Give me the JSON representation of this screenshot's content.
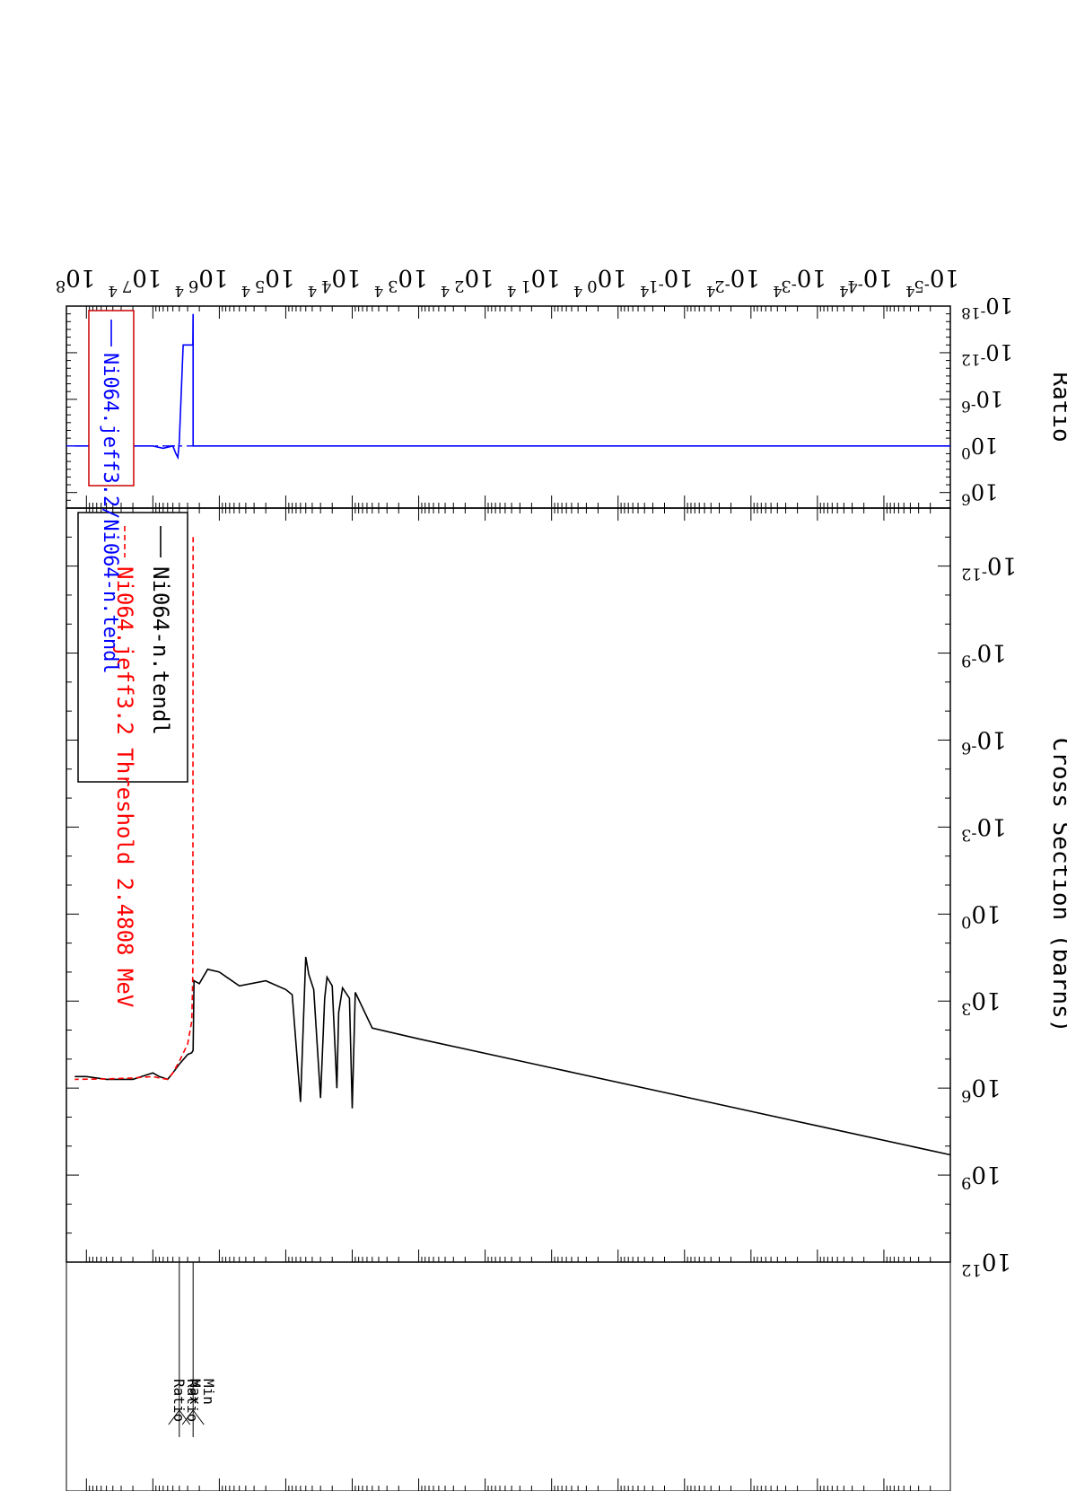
{
  "chart_data": [
    {
      "type": "line",
      "ylabel": "Cross Section (barns)",
      "x_scale": "log",
      "y_scale": "log",
      "xlim": [
        1e-05,
        200000000.0
      ],
      "ylim": [
        1e-14,
        1000000000000.0
      ],
      "x_tick_labels": [
        "10^-5",
        "10^-4",
        "10^-3",
        "10^-2",
        "10^-1",
        "10^0",
        "10^1",
        "10^2",
        "10^3",
        "10^4",
        "10^5",
        "10^6",
        "10^7",
        "10^8"
      ],
      "y_tick_labels": [
        "10^-12",
        "10^-9",
        "10^-6",
        "10^-3",
        "10^0",
        "10^3",
        "10^6",
        "10^9",
        "10^12"
      ],
      "minor_tick_label": "4",
      "legend_position": "top-left",
      "series": [
        {
          "name": "Ni064-n.tendl",
          "color": "#000000",
          "style": "solid",
          "x": [
            1e-05,
            0.001,
            0.1,
            10,
            1000,
            5000,
            9000,
            10000,
            11000,
            14000,
            16000,
            17000,
            20000,
            24000,
            26000,
            30000,
            38000,
            45000,
            50000,
            60000,
            80000,
            100000,
            200000,
            500000,
            1000000,
            1500000,
            2000000,
            2400000,
            2480000,
            2600000,
            3000000,
            4000000,
            5000000,
            6000000,
            8000000,
            10000000,
            20000000,
            50000000,
            100000000,
            150000000
          ],
          "y": [
            200000000,
            20000000,
            2000000,
            200000,
            20000,
            8500,
            500,
            5000000,
            800,
            350,
            2500,
            1000000,
            300,
            150,
            800,
            2200000,
            400,
            120,
            30,
            3000000,
            600,
            400,
            200,
            300,
            100,
            80,
            250,
            200,
            50000,
            60000,
            70000,
            150000,
            300000,
            500000,
            400000,
            300000,
            500000,
            500000,
            400000,
            400000
          ]
        },
        {
          "name": "Ni064.jeff3.2 Threshold 2.4808 MeV",
          "color": "#ff0000",
          "style": "dashed",
          "x": [
            2480800,
            2490000,
            2500000,
            2600000,
            3000000,
            4000000,
            5000000,
            6000000,
            8000000,
            10000000,
            20000000,
            50000000,
            150000000
          ],
          "y": [
            1e-13,
            1e-07,
            100,
            5000,
            30000,
            120000,
            300000,
            500000,
            450000,
            400000,
            450000,
            480000,
            500000
          ]
        }
      ]
    },
    {
      "type": "line",
      "ylabel": "Ratio",
      "x_scale": "log",
      "y_scale": "log",
      "xlim": [
        1e-05,
        200000000.0
      ],
      "ylim": [
        1e-18,
        100000000.0
      ],
      "y_tick_labels": [
        "10^-18",
        "10^-12",
        "10^-6",
        "10^0",
        "10^6"
      ],
      "series": [
        {
          "name": "Ni064.jeff3.2/Ni064-n.tendl",
          "color": "#0000ff",
          "style": "solid",
          "x": [
            1e-05,
            2480000,
            2480800,
            2490000,
            2500000,
            2700000,
            3000000,
            3500000,
            4000000,
            4200000,
            4500000,
            5000000,
            7000000,
            10000000,
            20000000,
            50000000,
            100000000,
            150000000
          ],
          "y": [
            1,
            1,
            1e-17,
            1e-16,
            1e-13,
            1e-13,
            1e-13,
            1e-13,
            0.3,
            30,
            10,
            1,
            2,
            1,
            1,
            1,
            1,
            1
          ]
        }
      ],
      "reference_line": {
        "y": 1,
        "style": "dash-dot",
        "color": "#0000ff"
      }
    }
  ],
  "annotations": {
    "min_ratio": "Min\nRatio",
    "max_ratio": "Max\nRatio"
  }
}
